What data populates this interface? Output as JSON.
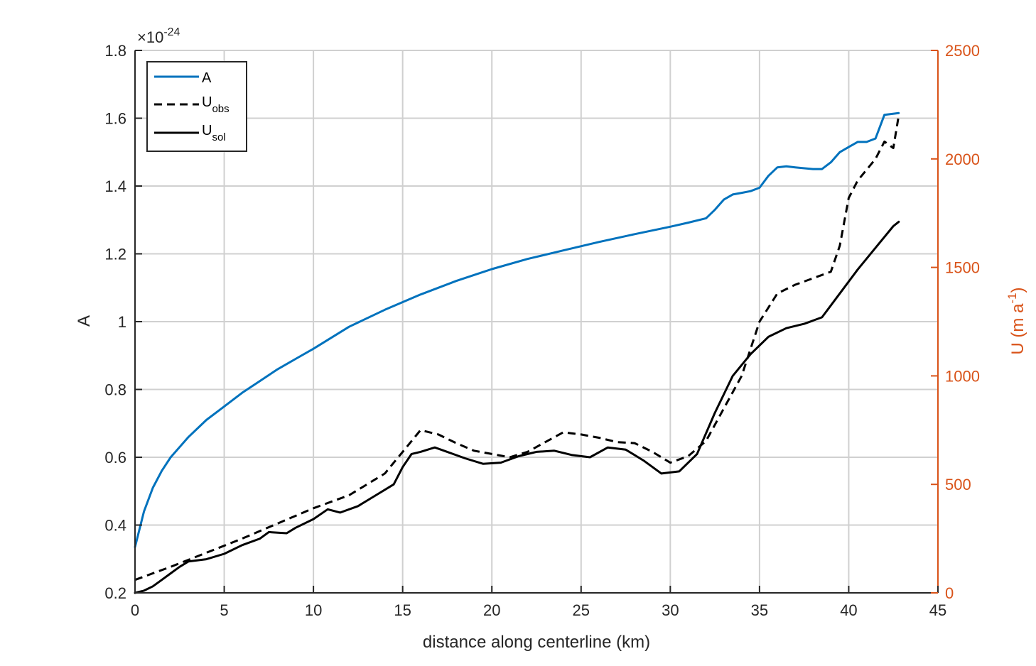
{
  "chart_data": {
    "type": "line",
    "xlabel": "distance along centerline (km)",
    "ylabel_left": "A",
    "left_multiplier": {
      "base": "×10",
      "exponent": "-24"
    },
    "ylabel_right": {
      "main": "U (m a",
      "sup": "-1",
      "close": ")"
    },
    "xlim": [
      0,
      45
    ],
    "ylim_left": [
      0.2,
      1.8
    ],
    "ylim_right": [
      0,
      2500
    ],
    "x_ticks": [
      "0",
      "5",
      "10",
      "15",
      "20",
      "25",
      "30",
      "35",
      "40",
      "45"
    ],
    "left_ticks": [
      "0.2",
      "0.4",
      "0.6",
      "0.8",
      "1",
      "1.2",
      "1.4",
      "1.6",
      "1.8"
    ],
    "right_ticks": [
      "0",
      "500",
      "1000",
      "1500",
      "2000",
      "2500"
    ],
    "grid": true,
    "legend_position": "top-left",
    "colors": {
      "A": "#0072bd",
      "U_obs": "#000000",
      "U_sol": "#000000",
      "right_axis": "#d95319",
      "grid": "#d0d0d0"
    },
    "legend": [
      {
        "name": "A",
        "sub": ""
      },
      {
        "name": "U",
        "sub": "obs"
      },
      {
        "name": "U",
        "sub": "sol"
      }
    ],
    "series": [
      {
        "name": "A",
        "axis": "left",
        "style": "solid",
        "color": "#0072bd",
        "x": [
          0,
          0.5,
          1,
          1.5,
          2,
          3,
          4,
          5,
          6,
          7,
          8,
          9,
          10,
          12,
          14,
          16,
          18,
          20,
          22,
          24,
          26,
          28,
          30,
          31,
          32,
          32.5,
          33,
          33.5,
          34,
          34.5,
          35,
          35.5,
          36,
          36.5,
          37,
          38,
          38.5,
          39,
          39.5,
          40,
          40.5,
          41,
          41.5,
          42,
          42.8
        ],
        "y": [
          0.335,
          0.44,
          0.51,
          0.56,
          0.6,
          0.66,
          0.71,
          0.75,
          0.79,
          0.825,
          0.86,
          0.89,
          0.92,
          0.985,
          1.035,
          1.08,
          1.12,
          1.155,
          1.185,
          1.21,
          1.235,
          1.258,
          1.28,
          1.292,
          1.305,
          1.33,
          1.36,
          1.375,
          1.38,
          1.385,
          1.395,
          1.43,
          1.455,
          1.458,
          1.455,
          1.45,
          1.45,
          1.47,
          1.5,
          1.515,
          1.53,
          1.53,
          1.54,
          1.61,
          1.615
        ]
      },
      {
        "name": "U_obs",
        "axis": "right",
        "style": "dashed",
        "color": "#000000",
        "x": [
          0,
          2,
          4,
          6,
          8,
          10,
          12,
          14,
          15,
          16,
          17,
          18,
          19,
          20,
          21,
          22,
          23,
          24,
          25,
          26,
          27,
          28,
          29,
          30,
          31,
          32,
          33,
          34,
          35,
          36,
          37,
          38,
          39,
          39.5,
          40,
          40.5,
          41,
          41.5,
          42,
          42.5,
          42.8
        ],
        "y": [
          60,
          120,
          185,
          250,
          320,
          390,
          450,
          550,
          650,
          750,
          730,
          690,
          655,
          640,
          625,
          650,
          695,
          740,
          730,
          715,
          695,
          690,
          650,
          600,
          630,
          700,
          850,
          1000,
          1250,
          1380,
          1420,
          1450,
          1480,
          1600,
          1820,
          1900,
          1950,
          2000,
          2080,
          2050,
          2200
        ]
      },
      {
        "name": "U_sol",
        "axis": "right",
        "style": "solid",
        "color": "#000000",
        "x": [
          0,
          0.5,
          1,
          1.5,
          2,
          2.5,
          3,
          4,
          5,
          6,
          7,
          7.5,
          8.5,
          9,
          10,
          10.8,
          11.5,
          12.5,
          13.5,
          14.5,
          15,
          15.5,
          16,
          16.8,
          17.5,
          18.5,
          19.5,
          20.5,
          21.5,
          22.5,
          23.5,
          24.5,
          25.5,
          26.5,
          27.5,
          28.5,
          29.5,
          30.5,
          31.5,
          32.5,
          33.5,
          34.5,
          35.5,
          36.5,
          37.5,
          38.5,
          39.5,
          40.5,
          41.5,
          42.5,
          42.8
        ],
        "y": [
          0,
          10,
          30,
          60,
          90,
          120,
          145,
          155,
          180,
          220,
          250,
          280,
          275,
          300,
          340,
          385,
          370,
          400,
          450,
          500,
          580,
          640,
          650,
          670,
          650,
          620,
          595,
          600,
          630,
          650,
          655,
          635,
          625,
          670,
          660,
          610,
          550,
          560,
          640,
          830,
          1000,
          1100,
          1180,
          1220,
          1240,
          1270,
          1380,
          1490,
          1590,
          1690,
          1710
        ]
      }
    ]
  }
}
